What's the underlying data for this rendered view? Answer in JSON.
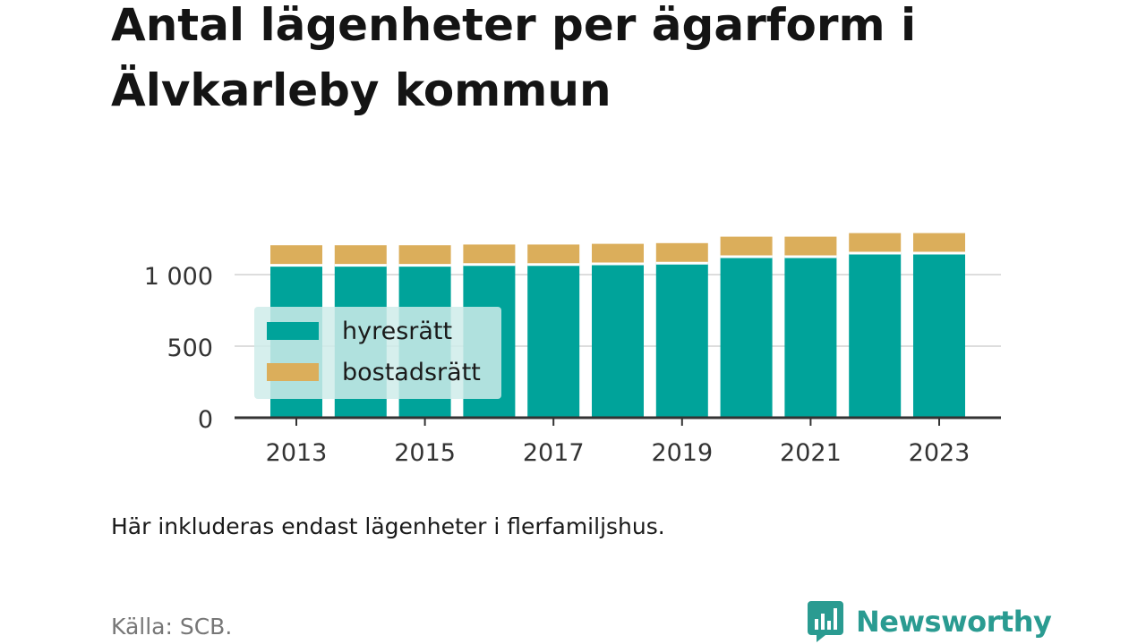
{
  "title": "Antal lägenheter per ägarform i Älvkarleby kommun",
  "note": "Här inkluderas endast lägenheter i flerfamiljshus.",
  "source": "Källa: SCB.",
  "brand": {
    "name": "Newsworthy",
    "color": "#2a9b91"
  },
  "colors": {
    "hyresratt": "#00a39a",
    "bostadsratt": "#dbae5b",
    "axis": "#333333",
    "grid": "#dddddd",
    "legend_bg": "#cfecea"
  },
  "chart_data": {
    "type": "bar",
    "stacked": true,
    "categories": [
      "2013",
      "2014",
      "2015",
      "2016",
      "2017",
      "2018",
      "2019",
      "2020",
      "2021",
      "2022",
      "2023"
    ],
    "x_tick_labels": [
      "2013",
      "2015",
      "2017",
      "2019",
      "2021",
      "2023"
    ],
    "y_ticks": [
      0,
      500,
      1000
    ],
    "y_tick_labels": [
      "0",
      "500",
      "1 000"
    ],
    "ylim": [
      0,
      1300
    ],
    "grid": true,
    "legend_position": "left",
    "series": [
      {
        "name": "hyresrätt",
        "color": "#00a39a",
        "values": [
          1065,
          1065,
          1065,
          1070,
          1070,
          1075,
          1080,
          1125,
          1125,
          1150,
          1150
        ]
      },
      {
        "name": "bostadsrätt",
        "color": "#dbae5b",
        "values": [
          140,
          140,
          140,
          140,
          140,
          140,
          140,
          140,
          140,
          140,
          140
        ]
      }
    ]
  }
}
